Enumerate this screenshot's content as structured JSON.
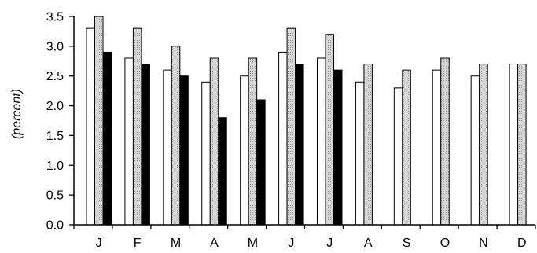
{
  "chart_data": {
    "type": "bar",
    "ylabel": "(percent)",
    "ylim": [
      0,
      3.5
    ],
    "y_ticks": [
      "0.0",
      "0.5",
      "1.0",
      "1.5",
      "2.0",
      "2.5",
      "3.0",
      "3.5"
    ],
    "categories": [
      "J",
      "F",
      "M",
      "A",
      "M",
      "J",
      "J",
      "A",
      "S",
      "O",
      "N",
      "D"
    ],
    "grid": false,
    "series": [
      {
        "fill": "#ffffff",
        "values": [
          3.3,
          2.8,
          2.6,
          2.4,
          2.5,
          2.9,
          2.8,
          2.4,
          2.3,
          2.6,
          2.5,
          2.7
        ]
      },
      {
        "fill": "#d4d4d4",
        "pattern": "dotted",
        "values": [
          3.5,
          3.3,
          3.0,
          2.8,
          2.8,
          3.3,
          3.2,
          2.7,
          2.6,
          2.8,
          2.7,
          2.7
        ]
      },
      {
        "fill": "#000000",
        "values": [
          2.9,
          2.7,
          2.5,
          1.8,
          2.1,
          2.7,
          2.6,
          null,
          null,
          null,
          null,
          null
        ]
      }
    ]
  }
}
